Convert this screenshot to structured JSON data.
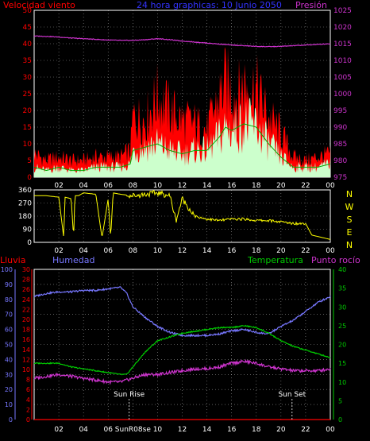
{
  "colors": {
    "background": "#000000",
    "axis": "#ffffff",
    "grid": "#ffffff",
    "wind_max": "#ff0000",
    "wind_avg": "#ccffcc",
    "wind_line": "#00aa00",
    "pressure": "#cc33cc",
    "direction": "#ffff00",
    "rain": "#ff0000",
    "humidity": "#7777ff",
    "temperature": "#00cc00",
    "dewpoint": "#cc33cc",
    "title": "#3333ff",
    "label_red": "#ff0000",
    "label_green": "#00cc00",
    "label_magenta": "#cc33cc",
    "label_blue": "#7777ff"
  },
  "chart_data": [
    {
      "type": "area",
      "title": "24 hora graphicas:  10 Junio 2050",
      "ylabel_left": "Velocidad viento",
      "ylabel_right": "Presión",
      "x_ticks": [
        "02",
        "04",
        "06",
        "08",
        "10",
        "12",
        "14",
        "16",
        "18",
        "20",
        "22",
        "00"
      ],
      "ylim_left": [
        0,
        50
      ],
      "y_ticks_left": [
        "50",
        "45",
        "40",
        "35",
        "30",
        "25",
        "20",
        "15",
        "10",
        "5",
        "0"
      ],
      "ylim_right": [
        975,
        1025
      ],
      "y_ticks_right": [
        "1025",
        "1020",
        "1015",
        "1010",
        "1005",
        "1000",
        "995",
        "990",
        "985",
        "980",
        "975"
      ],
      "grid": true,
      "series": [
        {
          "name": "Velocidad viento max",
          "hours": [
            0,
            1,
            2,
            3,
            4,
            5,
            6,
            7,
            7.8,
            8,
            9,
            10,
            11,
            12,
            13,
            14,
            15,
            15.5,
            16,
            16.5,
            17,
            18,
            19,
            20,
            21,
            22,
            23,
            24
          ],
          "values": [
            7,
            5,
            6,
            5,
            5,
            6,
            6,
            6,
            8,
            18,
            17,
            24,
            20,
            17,
            16,
            14,
            24,
            28,
            26,
            24,
            28,
            26,
            18,
            13,
            6,
            5,
            6,
            7
          ]
        },
        {
          "name": "Velocidad viento medio",
          "hours": [
            0,
            1,
            2,
            3,
            4,
            5,
            6,
            7,
            7.8,
            8,
            9,
            10,
            11,
            12,
            13,
            14,
            15,
            15.5,
            16,
            16.5,
            17,
            18,
            19,
            20,
            21,
            22,
            23,
            24
          ],
          "values": [
            3,
            2,
            3,
            2,
            2,
            3,
            3,
            3,
            4,
            8,
            9,
            10,
            8,
            7,
            8,
            8,
            12,
            15,
            14,
            15,
            16,
            15,
            10,
            6,
            3,
            3,
            3,
            4
          ]
        },
        {
          "name": "Presión",
          "hours": [
            0,
            1,
            2,
            3,
            4,
            5,
            6,
            7,
            8,
            9,
            10,
            11,
            12,
            13,
            14,
            15,
            16,
            17,
            18,
            19,
            20,
            21,
            22,
            23,
            24
          ],
          "values": [
            1017.3,
            1017.2,
            1017,
            1016.7,
            1016.5,
            1016.3,
            1016.1,
            1016,
            1016,
            1016.2,
            1016.5,
            1016.2,
            1015.8,
            1015.5,
            1015.2,
            1014.9,
            1014.6,
            1014.4,
            1014.2,
            1014.1,
            1014.2,
            1014.4,
            1014.6,
            1014.8,
            1015
          ]
        }
      ]
    },
    {
      "type": "line",
      "right_labels": [
        "N",
        "W",
        "S",
        "E",
        "N"
      ],
      "ylim": [
        0,
        360
      ],
      "y_ticks": [
        "360",
        "270",
        "180",
        "90",
        "0"
      ],
      "x_ticks": [
        "02",
        "04",
        "06",
        "08",
        "10",
        "12",
        "14",
        "16",
        "18",
        "20",
        "22",
        "00"
      ],
      "grid": true,
      "series": [
        {
          "name": "Dirección viento",
          "hours": [
            0,
            0.5,
            1,
            2,
            2.4,
            2.5,
            3,
            3.2,
            3.3,
            3.6,
            4,
            5,
            5.5,
            6,
            6.2,
            6.4,
            7,
            8,
            9,
            10,
            11,
            11.5,
            12,
            13,
            14,
            15,
            16,
            17,
            18,
            19,
            20,
            21,
            22,
            22.5,
            23,
            24
          ],
          "values": [
            320,
            320,
            320,
            310,
            30,
            310,
            300,
            30,
            320,
            320,
            340,
            330,
            30,
            300,
            30,
            340,
            330,
            320,
            330,
            340,
            320,
            150,
            300,
            180,
            160,
            150,
            160,
            160,
            150,
            150,
            140,
            130,
            130,
            50,
            40,
            20
          ]
        }
      ]
    },
    {
      "type": "line",
      "ylabel_left_outer": "Lluvia",
      "ylabel_left_inner": "Humedad",
      "ylabel_right_inner": "Temperatura",
      "ylabel_right_outer": "Punto rocío",
      "x_ticks": [
        "02",
        "04",
        "06",
        "SunR08se",
        "10",
        "12",
        "14",
        "16",
        "18",
        "20",
        "22",
        "00"
      ],
      "annotations": [
        {
          "text": "Sun Rise",
          "hour": 7.7
        },
        {
          "text": "Sun Set",
          "hour": 20.9
        }
      ],
      "humidity_axis": {
        "ylim": [
          0,
          100
        ],
        "ticks": [
          "100",
          "90",
          "80",
          "70",
          "60",
          "50",
          "40",
          "30",
          "20",
          "10",
          "0"
        ]
      },
      "rain_axis": {
        "ylim": [
          0,
          30
        ],
        "ticks": [
          "30",
          "28",
          "26",
          "24",
          "22",
          "20",
          "18",
          "16",
          "14",
          "12",
          "10",
          "8",
          "6",
          "4",
          "2",
          "0"
        ]
      },
      "temperature_axis": {
        "ylim": [
          0,
          40
        ],
        "ticks": [
          "40",
          "35",
          "30",
          "25",
          "20",
          "15",
          "10",
          "5",
          "0"
        ]
      },
      "grid": true,
      "series": [
        {
          "name": "Humedad",
          "axis": "humidity",
          "hours": [
            0,
            0.5,
            1,
            2,
            3,
            4,
            5,
            6,
            7,
            7.5,
            8,
            9,
            10,
            11,
            12,
            13,
            14,
            15,
            16,
            17,
            18,
            19,
            20,
            21,
            22,
            23,
            24
          ],
          "values": [
            82,
            83,
            84,
            85,
            85,
            86,
            86,
            87,
            88,
            84,
            75,
            68,
            62,
            58,
            56,
            56,
            56,
            57,
            59,
            60,
            58,
            57,
            62,
            66,
            72,
            78,
            82
          ]
        },
        {
          "name": "Temperatura",
          "axis": "temperature",
          "hours": [
            0,
            1,
            2,
            3,
            4,
            5,
            6,
            7,
            7.5,
            8,
            9,
            10,
            11,
            12,
            13,
            14,
            15,
            16,
            17,
            18,
            19,
            20,
            21,
            22,
            23,
            24
          ],
          "values": [
            15,
            15,
            15,
            14,
            13.5,
            13,
            12.5,
            12,
            12,
            14,
            18,
            21,
            22,
            23,
            23.5,
            24,
            24.5,
            24.5,
            25,
            24.5,
            23,
            21,
            19.5,
            18.5,
            17.5,
            16.5
          ]
        },
        {
          "name": "Punto rocío",
          "axis": "temperature",
          "hours": [
            0,
            1,
            2,
            3,
            4,
            5,
            6,
            7,
            8,
            9,
            10,
            11,
            12,
            13,
            14,
            15,
            16,
            17,
            18,
            19,
            20,
            21,
            22,
            23,
            24
          ],
          "values": [
            11,
            11.5,
            12,
            11.5,
            11,
            10.5,
            10,
            10,
            11,
            12,
            12,
            12.5,
            13,
            13.5,
            13.5,
            14,
            15,
            15.5,
            15,
            14,
            13.5,
            13,
            13,
            13,
            13.5
          ]
        },
        {
          "name": "Lluvia",
          "axis": "rain",
          "hours": [
            0,
            24
          ],
          "values": [
            0,
            0
          ]
        }
      ]
    }
  ]
}
